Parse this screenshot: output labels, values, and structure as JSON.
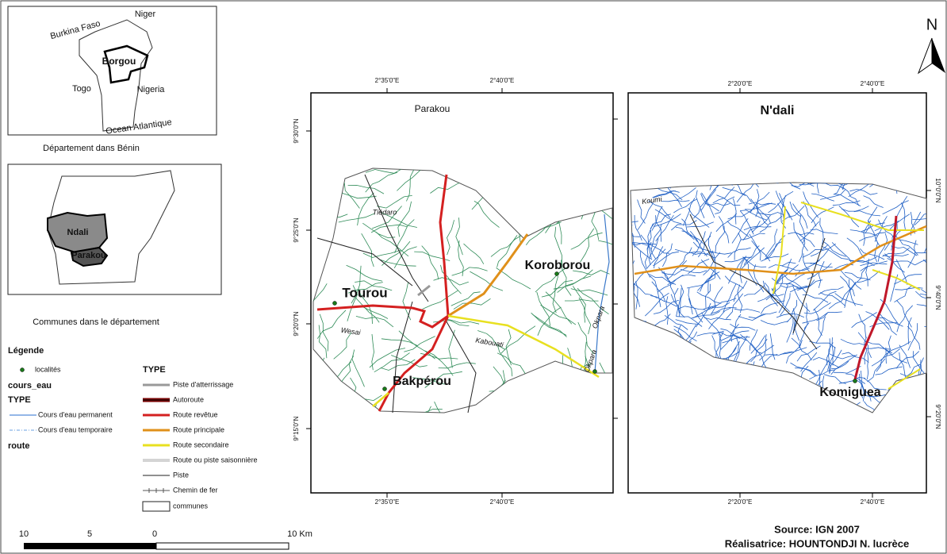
{
  "inset_benin": {
    "labels": [
      "Burkina Faso",
      "Niger",
      "Borgou",
      "Togo",
      "Nigeria",
      "Ocean Atlantique"
    ],
    "caption": "Département dans Bénin"
  },
  "inset_borgou": {
    "labels": [
      "Ndali",
      "Parakou"
    ],
    "caption": "Communes dans le département"
  },
  "legend": {
    "title": "Légende",
    "localites": "localités",
    "cours_eau_title": "cours_eau",
    "cours_eau_type": "TYPE",
    "cours_eau": [
      "Cours d'eau permanent",
      "Cours d'eau temporaire"
    ],
    "route_title": "route",
    "route_type": "TYPE",
    "routes": [
      "Piste d'atterrissage",
      "Autoroute",
      "Route revêtue",
      "Route principale",
      "Route secondaire",
      "Route ou piste saisonnière",
      "Piste",
      "Chemin de fer"
    ],
    "communes": "communes"
  },
  "scale": {
    "labels": [
      "10",
      "5",
      "0",
      "10 Km"
    ]
  },
  "north": "N",
  "map_parakou": {
    "title": "Parakou",
    "top_ticks": [
      "2°35'0\"E",
      "2°40'0\"E"
    ],
    "bottom_ticks": [
      "2°35'0\"E",
      "2°40'0\"E"
    ],
    "left_ticks": [
      "9°30'0\"N",
      "9°25'0\"N",
      "9°20'0\"N",
      "9°15'0\"N"
    ],
    "places": [
      "Tourou",
      "Koroborou",
      "Bakpérou"
    ],
    "rivers": [
      "Tiédaro",
      "Wesai",
      "Kabouati",
      "Okpara",
      "Okpara"
    ]
  },
  "map_ndali": {
    "title": "N'dali",
    "top_ticks": [
      "2°20'0\"E",
      "2°40'0\"E"
    ],
    "bottom_ticks": [
      "2°20'0\"E",
      "2°40'0\"E"
    ],
    "right_ticks": [
      "10°0'0\"N",
      "9°40'0\"N",
      "9°20'0\"N"
    ],
    "places": [
      "Komiguea"
    ],
    "rivers": [
      "Koumi"
    ]
  },
  "source": "Source: IGN 2007",
  "author": "Réalisatrice: HOUNTONDJI N. lucrèce"
}
